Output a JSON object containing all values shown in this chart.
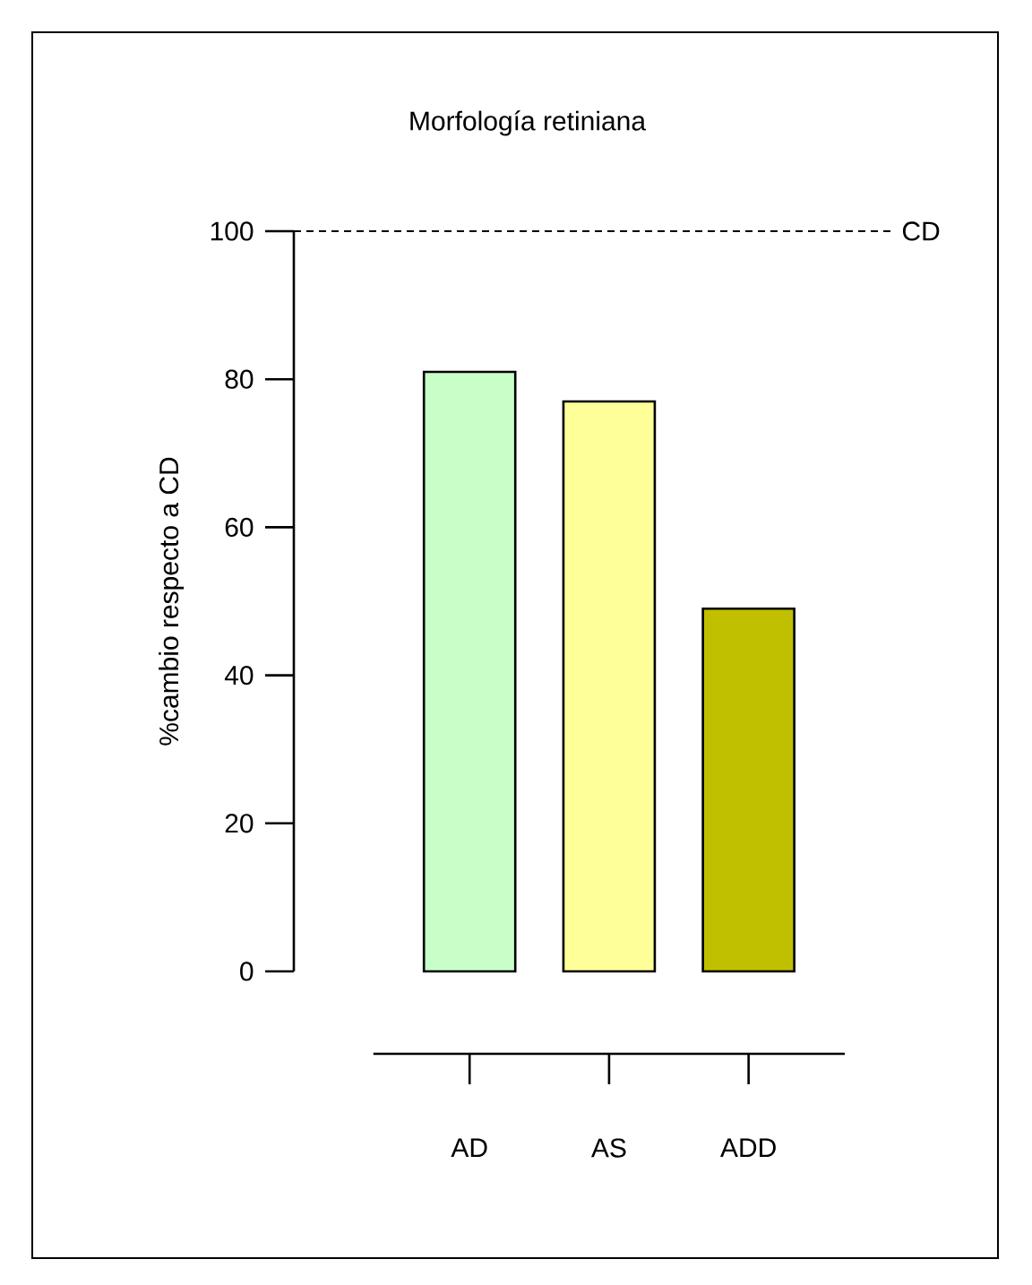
{
  "chart_data": {
    "type": "bar",
    "title": "Morfología retiniana",
    "ylabel": "%cambio respecto a CD",
    "categories": [
      "AD",
      "AS",
      "ADD"
    ],
    "values": [
      81,
      77,
      49
    ],
    "colors": [
      "#c8ffc8",
      "#ffff99",
      "#c0c000"
    ],
    "ylim": [
      0,
      100
    ],
    "yticks": [
      0,
      20,
      40,
      60,
      80,
      100
    ],
    "ref_lines": [
      {
        "axis": "y",
        "value": 100,
        "label": "CD",
        "line_style": "dashed"
      }
    ]
  }
}
